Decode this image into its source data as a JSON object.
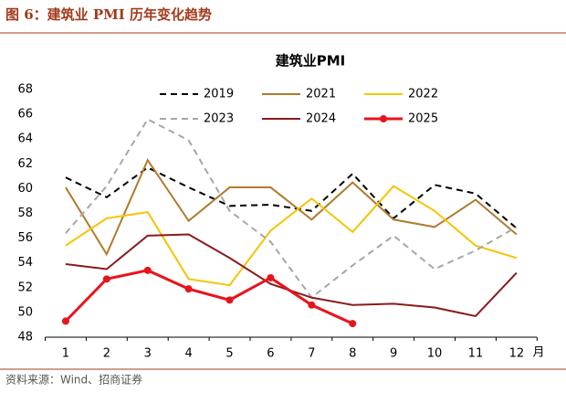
{
  "header": {
    "title": "图 6：建筑业 PMI 历年变化趋势"
  },
  "source": "资料来源：Wind、招商证券",
  "chart_data": {
    "type": "line",
    "title": "建筑业PMI",
    "x_label": "月",
    "categories": [
      "1",
      "2",
      "3",
      "4",
      "5",
      "6",
      "7",
      "8",
      "9",
      "10",
      "11",
      "12"
    ],
    "ylim": [
      48,
      68
    ],
    "yticks": [
      48,
      50,
      52,
      54,
      56,
      58,
      60,
      62,
      64,
      66,
      68
    ],
    "series": [
      {
        "name": "2019",
        "color": "#000000",
        "dash": true,
        "values": [
          60.9,
          59.3,
          61.7,
          60.1,
          58.6,
          58.7,
          58.2,
          61.2,
          57.6,
          60.3,
          59.6,
          56.8
        ]
      },
      {
        "name": "2021",
        "color": "#b07b2c",
        "values": [
          60.1,
          54.7,
          62.3,
          57.4,
          60.1,
          60.1,
          57.5,
          60.5,
          57.5,
          56.9,
          59.1,
          56.3
        ]
      },
      {
        "name": "2022",
        "color": "#f5c400",
        "values": [
          55.4,
          57.6,
          58.1,
          52.7,
          52.2,
          56.6,
          59.2,
          56.5,
          60.2,
          58.2,
          55.4,
          54.4
        ]
      },
      {
        "name": "2023",
        "color": "#a6a6a6",
        "dash": true,
        "values": [
          56.4,
          60.2,
          65.6,
          63.9,
          58.2,
          55.7,
          51.2,
          53.8,
          56.2,
          53.5,
          55.0,
          56.9
        ]
      },
      {
        "name": "2024",
        "color": "#8b1a1a",
        "values": [
          53.9,
          53.5,
          56.2,
          56.3,
          54.4,
          52.3,
          51.2,
          50.6,
          50.7,
          50.4,
          49.7,
          53.2
        ]
      },
      {
        "name": "2025",
        "color": "#e8141b",
        "marker": true,
        "values": [
          49.3,
          52.7,
          53.4,
          51.9,
          51.0,
          52.8,
          50.6,
          49.1,
          null,
          null,
          null,
          null
        ]
      }
    ]
  }
}
